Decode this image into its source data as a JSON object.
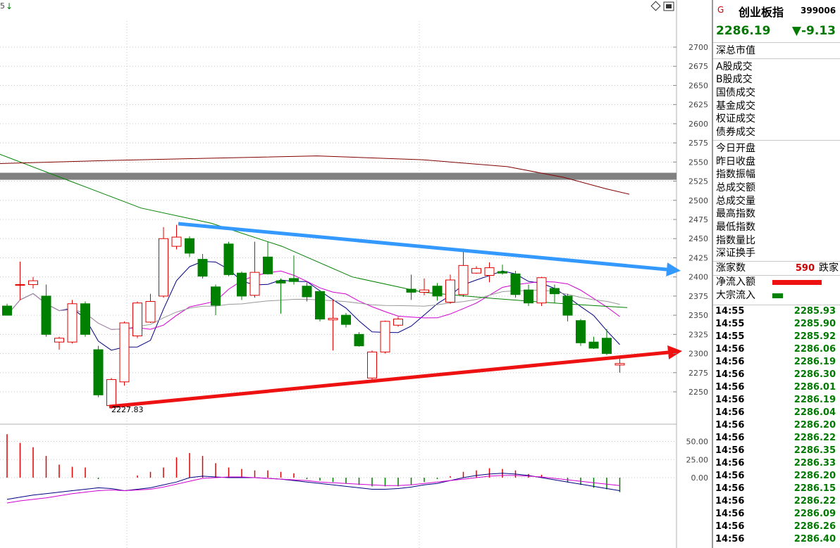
{
  "chart_data": {
    "type": "candlestick",
    "candles": [
      {
        "o": 2362,
        "c": 2350,
        "h": 2365,
        "l": 2350
      },
      {
        "o": 2390,
        "c": 2390,
        "h": 2420,
        "l": 2370
      },
      {
        "o": 2390,
        "c": 2395,
        "h": 2400,
        "l": 2385
      },
      {
        "o": 2375,
        "c": 2325,
        "h": 2390,
        "l": 2322
      },
      {
        "o": 2315,
        "c": 2320,
        "h": 2322,
        "l": 2305
      },
      {
        "o": 2315,
        "c": 2365,
        "h": 2370,
        "l": 2313
      },
      {
        "o": 2365,
        "c": 2325,
        "h": 2368,
        "l": 2322
      },
      {
        "o": 2305,
        "c": 2246,
        "h": 2310,
        "l": 2243
      },
      {
        "o": 2232,
        "c": 2266,
        "h": 2268,
        "l": 2227.83
      },
      {
        "o": 2263,
        "c": 2340,
        "h": 2342,
        "l": 2258
      },
      {
        "o": 2323,
        "c": 2366,
        "h": 2368,
        "l": 2320
      },
      {
        "o": 2341,
        "c": 2368,
        "h": 2378,
        "l": 2340
      },
      {
        "o": 2375,
        "c": 2450,
        "h": 2465,
        "l": 2373
      },
      {
        "o": 2440,
        "c": 2452,
        "h": 2468,
        "l": 2436
      },
      {
        "o": 2450,
        "c": 2431,
        "h": 2453,
        "l": 2426
      },
      {
        "o": 2423,
        "c": 2401,
        "h": 2430,
        "l": 2398
      },
      {
        "o": 2387,
        "c": 2363,
        "h": 2390,
        "l": 2350
      },
      {
        "o": 2443,
        "c": 2403,
        "h": 2446,
        "l": 2401
      },
      {
        "o": 2405,
        "c": 2375,
        "h": 2407,
        "l": 2370
      },
      {
        "o": 2376,
        "c": 2406,
        "h": 2446,
        "l": 2373
      },
      {
        "o": 2426,
        "c": 2404,
        "h": 2446,
        "l": 2403
      },
      {
        "o": 2395,
        "c": 2392,
        "h": 2398,
        "l": 2352
      },
      {
        "o": 2398,
        "c": 2394,
        "h": 2428,
        "l": 2390
      },
      {
        "o": 2388,
        "c": 2374,
        "h": 2393,
        "l": 2368
      },
      {
        "o": 2381,
        "c": 2345,
        "h": 2383,
        "l": 2342
      },
      {
        "o": 2344,
        "c": 2346,
        "h": 2370,
        "l": 2304
      },
      {
        "o": 2350,
        "c": 2338,
        "h": 2353,
        "l": 2334
      },
      {
        "o": 2325,
        "c": 2310,
        "h": 2328,
        "l": 2309
      },
      {
        "o": 2268,
        "c": 2302,
        "h": 2304,
        "l": 2266
      },
      {
        "o": 2302,
        "c": 2342,
        "h": 2343,
        "l": 2300
      },
      {
        "o": 2337,
        "c": 2345,
        "h": 2348,
        "l": 2335
      },
      {
        "o": 2384,
        "c": 2380,
        "h": 2403,
        "l": 2370
      },
      {
        "o": 2380,
        "c": 2383,
        "h": 2398,
        "l": 2376
      },
      {
        "o": 2388,
        "c": 2375,
        "h": 2392,
        "l": 2369
      },
      {
        "o": 2367,
        "c": 2396,
        "h": 2403,
        "l": 2365
      },
      {
        "o": 2377,
        "c": 2415,
        "h": 2437,
        "l": 2374
      },
      {
        "o": 2405,
        "c": 2411,
        "h": 2414,
        "l": 2404
      },
      {
        "o": 2402,
        "c": 2412,
        "h": 2419,
        "l": 2393
      },
      {
        "o": 2407,
        "c": 2405,
        "h": 2416,
        "l": 2403
      },
      {
        "o": 2404,
        "c": 2377,
        "h": 2408,
        "l": 2373
      },
      {
        "o": 2383,
        "c": 2366,
        "h": 2390,
        "l": 2362
      },
      {
        "o": 2366,
        "c": 2399,
        "h": 2400,
        "l": 2362
      },
      {
        "o": 2385,
        "c": 2378,
        "h": 2390,
        "l": 2366
      },
      {
        "o": 2375,
        "c": 2350,
        "h": 2378,
        "l": 2342
      },
      {
        "o": 2343,
        "c": 2314,
        "h": 2345,
        "l": 2310
      },
      {
        "o": 2315,
        "c": 2307,
        "h": 2322,
        "l": 2306
      },
      {
        "o": 2320,
        "c": 2300,
        "h": 2332,
        "l": 2298
      },
      {
        "o": 2285,
        "c": 2287,
        "h": 2297,
        "l": 2275
      }
    ],
    "yticks": [
      "2700",
      "2675",
      "2650",
      "2625",
      "2600",
      "2575",
      "2550",
      "2525",
      "2500",
      "2475",
      "2450",
      "2425",
      "2400",
      "2375",
      "2350",
      "2325",
      "2300",
      "2275",
      "2250"
    ],
    "low_label": "2227.83",
    "corner_label": "5",
    "indicator": {
      "yticks": [
        "50.00",
        "25.00",
        "0.00"
      ],
      "bars": [
        60,
        48,
        42,
        30,
        18,
        15,
        14,
        -2,
        0,
        0,
        3,
        8,
        14,
        28,
        34,
        30,
        20,
        14,
        12,
        10,
        10,
        8,
        6,
        -2,
        -4,
        -6,
        -8,
        -10,
        -12,
        -12,
        -12,
        -10,
        -6,
        -2,
        2,
        8,
        10,
        13,
        12,
        10,
        5,
        4,
        0,
        -6,
        -10,
        -14,
        -16,
        -20
      ]
    },
    "colors": {
      "up": "#e00000",
      "down": "#008000",
      "resistance": "#3399ff",
      "support": "#ee1111"
    }
  },
  "panel": {
    "badge": "G",
    "name": "创业板指",
    "code": "399006",
    "price": "2286.19",
    "change": "▼-9.13",
    "market_value_label": "深总市值",
    "volumes": [
      "A股成交",
      "B股成交",
      "国债成交",
      "基金成交",
      "权证成交",
      "债券成交"
    ],
    "stats": [
      "今日开盘",
      "昨日收盘",
      "指数振幅",
      "总成交额",
      "总成交量",
      "最高指数",
      "最低指数",
      "指数量比",
      "深证换手"
    ],
    "up_count_label": "涨家数",
    "up_count_value": "590",
    "down_count_label": "跌家",
    "net_inflow_label": "净流入额",
    "block_inflow_label": "大宗流入",
    "ticks": [
      {
        "time": "14:55",
        "price": "2285.93"
      },
      {
        "time": "14:55",
        "price": "2285.90"
      },
      {
        "time": "14:55",
        "price": "2285.92"
      },
      {
        "time": "14:56",
        "price": "2286.06"
      },
      {
        "time": "14:56",
        "price": "2286.19"
      },
      {
        "time": "14:56",
        "price": "2286.30"
      },
      {
        "time": "14:56",
        "price": "2286.01"
      },
      {
        "time": "14:56",
        "price": "2286.19"
      },
      {
        "time": "14:56",
        "price": "2286.04"
      },
      {
        "time": "14:56",
        "price": "2286.20"
      },
      {
        "time": "14:56",
        "price": "2286.22"
      },
      {
        "time": "14:56",
        "price": "2286.35"
      },
      {
        "time": "14:56",
        "price": "2286.33"
      },
      {
        "time": "14:56",
        "price": "2286.20"
      },
      {
        "time": "14:56",
        "price": "2286.15"
      },
      {
        "time": "14:56",
        "price": "2286.22"
      },
      {
        "time": "14:56",
        "price": "2286.09"
      },
      {
        "time": "14:56",
        "price": "2286.26"
      },
      {
        "time": "14:56",
        "price": "2286.40"
      }
    ]
  }
}
